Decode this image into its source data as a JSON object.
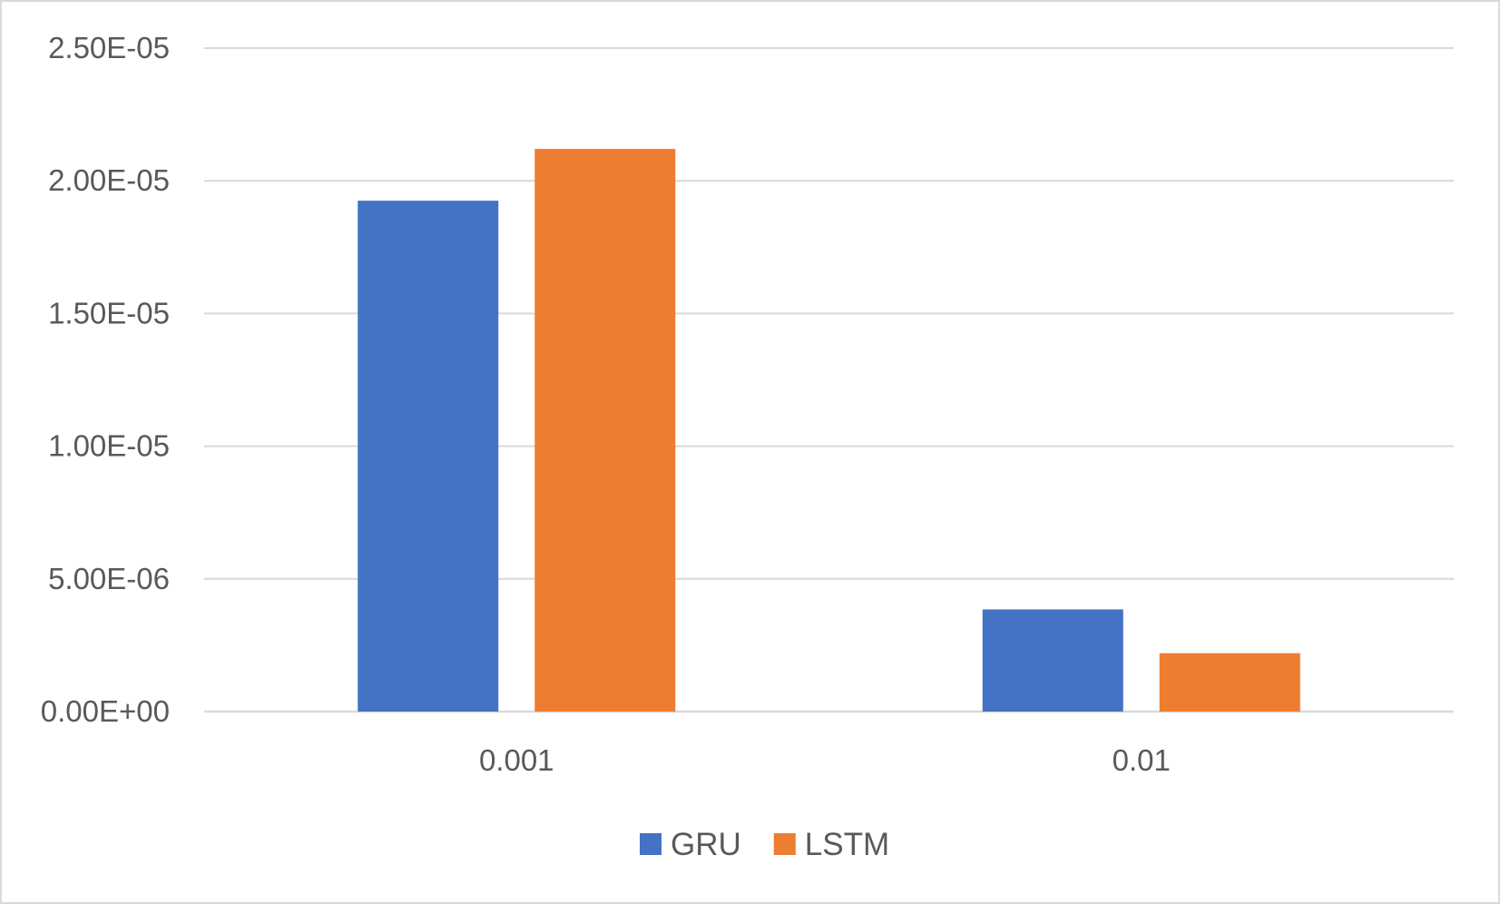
{
  "chart_data": {
    "type": "bar",
    "title": "",
    "xlabel": "",
    "ylabel": "",
    "categories": [
      "0.001",
      "0.01"
    ],
    "series": [
      {
        "name": "GRU",
        "color": "#4472c4",
        "values": [
          1.925e-05,
          3.85e-06
        ]
      },
      {
        "name": "LSTM",
        "color": "#ed7d31",
        "values": [
          2.12e-05,
          2.2e-06
        ]
      }
    ],
    "ylim": [
      0,
      2.5e-05
    ],
    "yticks": [
      0,
      5e-06,
      1e-05,
      1.5e-05,
      2e-05,
      2.5e-05
    ],
    "ytick_labels": [
      "0.00E+00",
      "5.00E-06",
      "1.00E-05",
      "1.50E-05",
      "2.00E-05",
      "2.50E-05"
    ],
    "grid": true,
    "legend": "bottom-center"
  }
}
